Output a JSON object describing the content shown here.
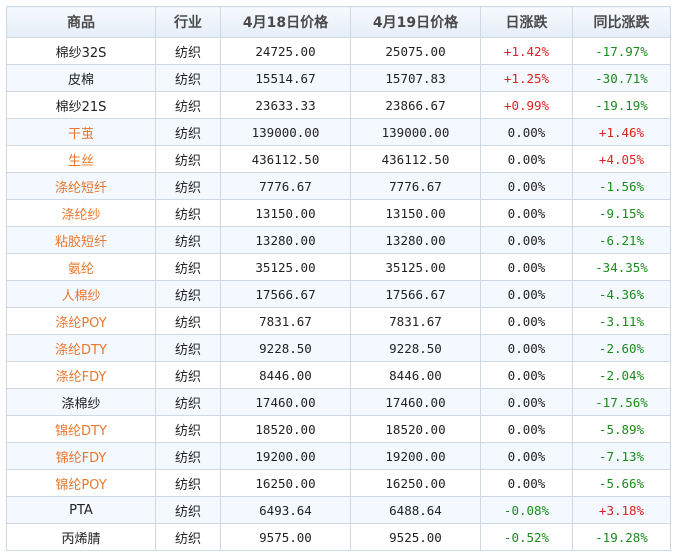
{
  "table": {
    "headers": [
      "商品",
      "行业",
      "4月18日价格",
      "4月19日价格",
      "日涨跌",
      "同比涨跌"
    ],
    "rows": [
      {
        "name": "棉纱32S",
        "industry": "纺织",
        "price_prev": "24725.00",
        "price_curr": "25075.00",
        "daily_change": "+1.42%",
        "yoy_change": "-17.97%",
        "name_style": "black",
        "daily_dir": "up",
        "yoy_dir": "down"
      },
      {
        "name": "皮棉",
        "industry": "纺织",
        "price_prev": "15514.67",
        "price_curr": "15707.83",
        "daily_change": "+1.25%",
        "yoy_change": "-30.71%",
        "name_style": "black",
        "daily_dir": "up",
        "yoy_dir": "down"
      },
      {
        "name": "棉纱21S",
        "industry": "纺织",
        "price_prev": "23633.33",
        "price_curr": "23866.67",
        "daily_change": "+0.99%",
        "yoy_change": "-19.19%",
        "name_style": "black",
        "daily_dir": "up",
        "yoy_dir": "down"
      },
      {
        "name": "干茧",
        "industry": "纺织",
        "price_prev": "139000.00",
        "price_curr": "139000.00",
        "daily_change": "0.00%",
        "yoy_change": "+1.46%",
        "name_style": "orange",
        "daily_dir": "flat",
        "yoy_dir": "up"
      },
      {
        "name": "生丝",
        "industry": "纺织",
        "price_prev": "436112.50",
        "price_curr": "436112.50",
        "daily_change": "0.00%",
        "yoy_change": "+4.05%",
        "name_style": "orange",
        "daily_dir": "flat",
        "yoy_dir": "up"
      },
      {
        "name": "涤纶短纤",
        "industry": "纺织",
        "price_prev": "7776.67",
        "price_curr": "7776.67",
        "daily_change": "0.00%",
        "yoy_change": "-1.56%",
        "name_style": "orange",
        "daily_dir": "flat",
        "yoy_dir": "down"
      },
      {
        "name": "涤纶纱",
        "industry": "纺织",
        "price_prev": "13150.00",
        "price_curr": "13150.00",
        "daily_change": "0.00%",
        "yoy_change": "-9.15%",
        "name_style": "orange",
        "daily_dir": "flat",
        "yoy_dir": "down"
      },
      {
        "name": "粘胶短纤",
        "industry": "纺织",
        "price_prev": "13280.00",
        "price_curr": "13280.00",
        "daily_change": "0.00%",
        "yoy_change": "-6.21%",
        "name_style": "orange",
        "daily_dir": "flat",
        "yoy_dir": "down"
      },
      {
        "name": "氨纶",
        "industry": "纺织",
        "price_prev": "35125.00",
        "price_curr": "35125.00",
        "daily_change": "0.00%",
        "yoy_change": "-34.35%",
        "name_style": "orange",
        "daily_dir": "flat",
        "yoy_dir": "down"
      },
      {
        "name": "人棉纱",
        "industry": "纺织",
        "price_prev": "17566.67",
        "price_curr": "17566.67",
        "daily_change": "0.00%",
        "yoy_change": "-4.36%",
        "name_style": "orange",
        "daily_dir": "flat",
        "yoy_dir": "down"
      },
      {
        "name": "涤纶POY",
        "industry": "纺织",
        "price_prev": "7831.67",
        "price_curr": "7831.67",
        "daily_change": "0.00%",
        "yoy_change": "-3.11%",
        "name_style": "orange",
        "daily_dir": "flat",
        "yoy_dir": "down"
      },
      {
        "name": "涤纶DTY",
        "industry": "纺织",
        "price_prev": "9228.50",
        "price_curr": "9228.50",
        "daily_change": "0.00%",
        "yoy_change": "-2.60%",
        "name_style": "orange",
        "daily_dir": "flat",
        "yoy_dir": "down"
      },
      {
        "name": "涤纶FDY",
        "industry": "纺织",
        "price_prev": "8446.00",
        "price_curr": "8446.00",
        "daily_change": "0.00%",
        "yoy_change": "-2.04%",
        "name_style": "orange",
        "daily_dir": "flat",
        "yoy_dir": "down"
      },
      {
        "name": "涤棉纱",
        "industry": "纺织",
        "price_prev": "17460.00",
        "price_curr": "17460.00",
        "daily_change": "0.00%",
        "yoy_change": "-17.56%",
        "name_style": "black",
        "daily_dir": "flat",
        "yoy_dir": "down"
      },
      {
        "name": "锦纶DTY",
        "industry": "纺织",
        "price_prev": "18520.00",
        "price_curr": "18520.00",
        "daily_change": "0.00%",
        "yoy_change": "-5.89%",
        "name_style": "orange",
        "daily_dir": "flat",
        "yoy_dir": "down"
      },
      {
        "name": "锦纶FDY",
        "industry": "纺织",
        "price_prev": "19200.00",
        "price_curr": "19200.00",
        "daily_change": "0.00%",
        "yoy_change": "-7.13%",
        "name_style": "orange",
        "daily_dir": "flat",
        "yoy_dir": "down"
      },
      {
        "name": "锦纶POY",
        "industry": "纺织",
        "price_prev": "16250.00",
        "price_curr": "16250.00",
        "daily_change": "0.00%",
        "yoy_change": "-5.66%",
        "name_style": "orange",
        "daily_dir": "flat",
        "yoy_dir": "down"
      },
      {
        "name": "PTA",
        "industry": "纺织",
        "price_prev": "6493.64",
        "price_curr": "6488.64",
        "daily_change": "-0.08%",
        "yoy_change": "+3.18%",
        "name_style": "black",
        "daily_dir": "down",
        "yoy_dir": "up"
      },
      {
        "name": "丙烯腈",
        "industry": "纺织",
        "price_prev": "9575.00",
        "price_curr": "9525.00",
        "daily_change": "-0.52%",
        "yoy_change": "-19.28%",
        "name_style": "black",
        "daily_dir": "down",
        "yoy_dir": "down"
      }
    ]
  }
}
